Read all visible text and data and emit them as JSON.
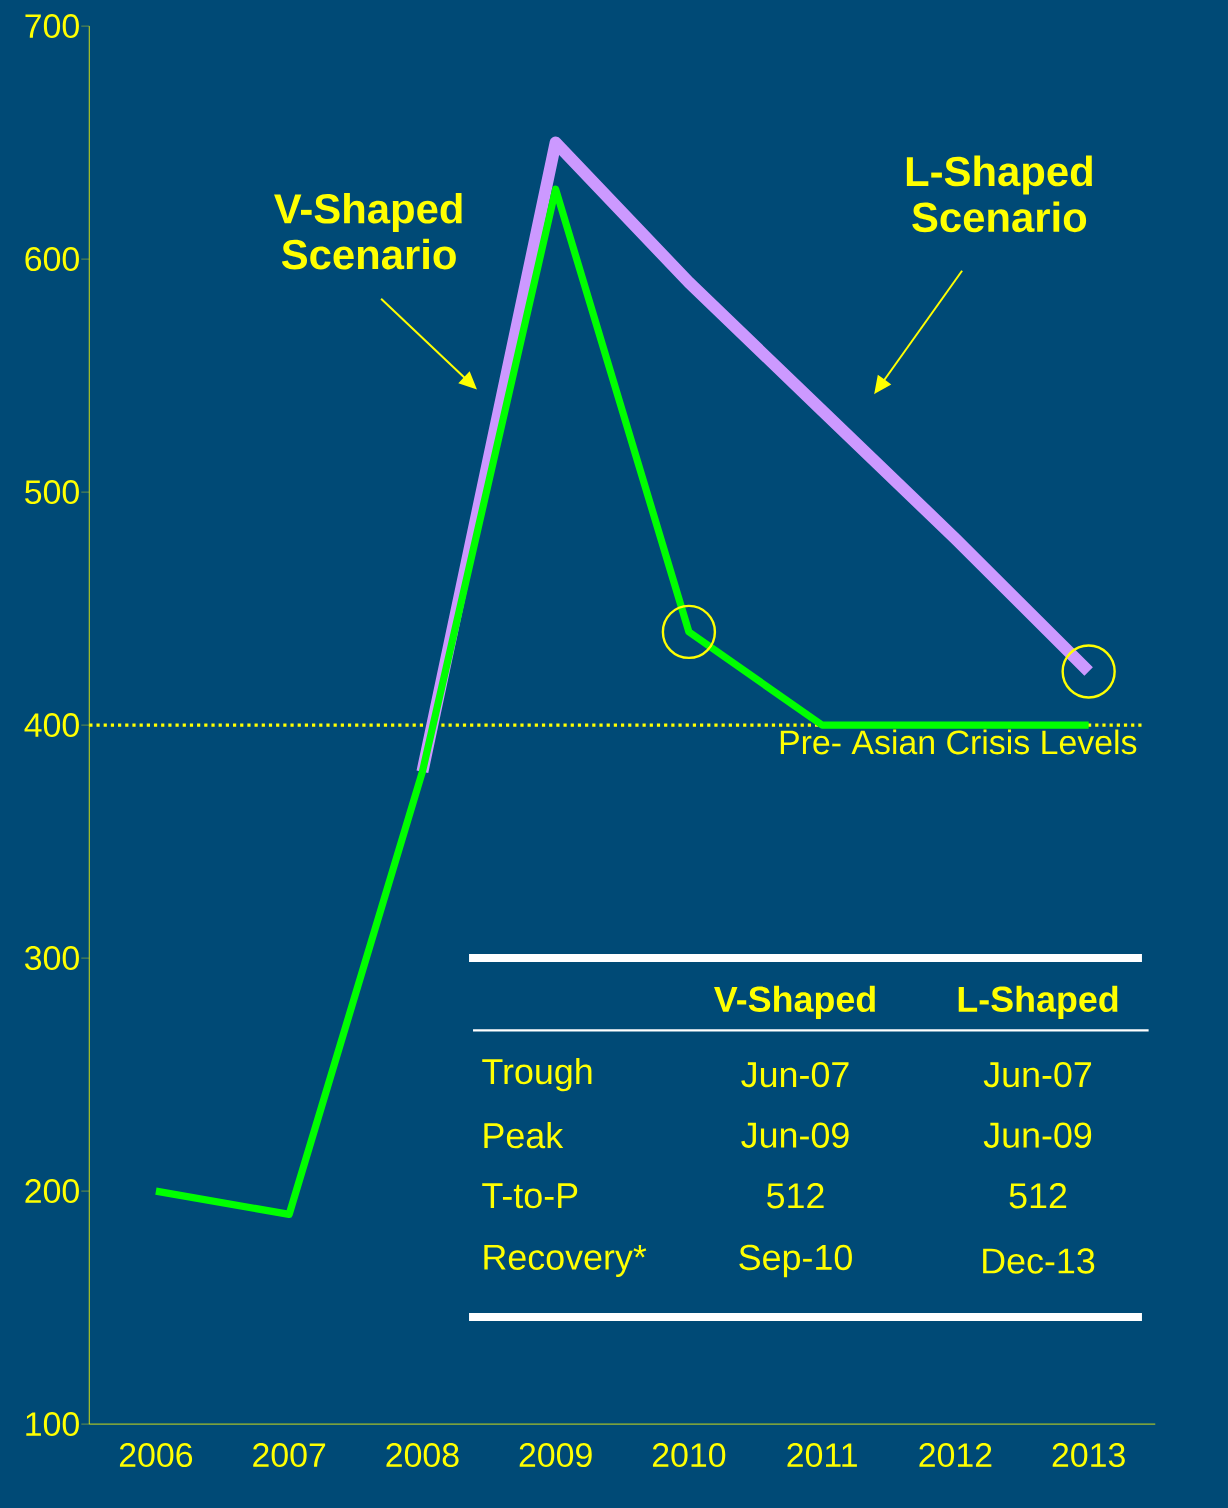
{
  "chart_data": {
    "type": "line",
    "categories": [
      "2006",
      "2007",
      "2008",
      "2009",
      "2010",
      "2011",
      "2012",
      "2013"
    ],
    "series": [
      {
        "color": "#cc99ff",
        "values": [
          null,
          null,
          380,
          650,
          590,
          535,
          480,
          423
        ]
      },
      {
        "color": "#00ff00",
        "values": [
          200,
          190,
          380,
          630,
          440,
          400,
          400,
          400
        ]
      }
    ],
    "ylim": [
      100,
      700
    ],
    "yticks": [
      100,
      200,
      300,
      400,
      500,
      600,
      700
    ],
    "ref_lines": [
      {
        "axis": "y",
        "value": 400,
        "label": "Pre- Asian Crisis Levels",
        "color": "#ffff00",
        "line_style": "dotted"
      }
    ],
    "annotations": [
      "V-Shaped Scenario",
      "L-Shaped Scenario",
      "V-Shaped",
      "L-Shaped",
      "Trough",
      "Jun-07",
      "Jun-07",
      "Peak",
      "Jun-09",
      "Jun-09",
      "T-to-P",
      "512",
      "512",
      "Recovery*",
      "Sep-10",
      "Dec-13"
    ]
  }
}
